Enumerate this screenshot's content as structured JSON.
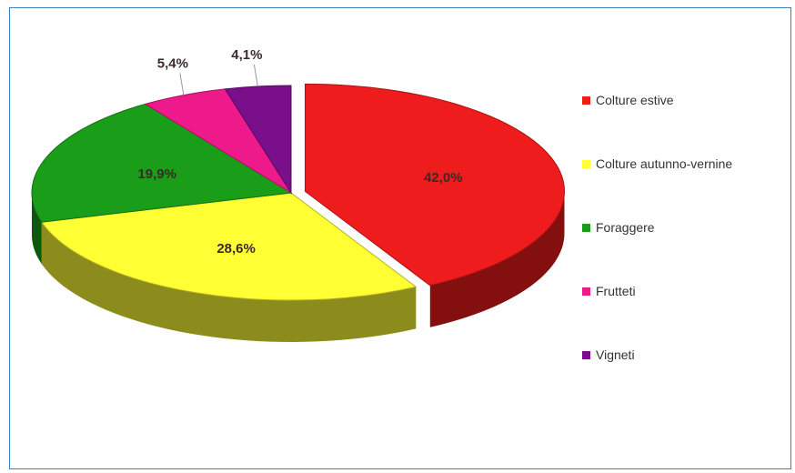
{
  "chart_data": {
    "type": "pie",
    "categories": [
      "Colture estive",
      "Colture autunno-vernine",
      "Foraggere",
      "Frutteti",
      "Vigneti"
    ],
    "values": [
      42.0,
      28.6,
      19.9,
      5.4,
      4.1
    ],
    "data_labels": [
      "42,0%",
      "28,6%",
      "19,9%",
      "5,4%",
      "4,1%"
    ],
    "colors": [
      "#ee1c1c",
      "#ffff33",
      "#1a9e1a",
      "#ee1a8c",
      "#7a0f8c"
    ],
    "exploded": "Colture estive",
    "style": "3d",
    "legend_position": "right"
  }
}
